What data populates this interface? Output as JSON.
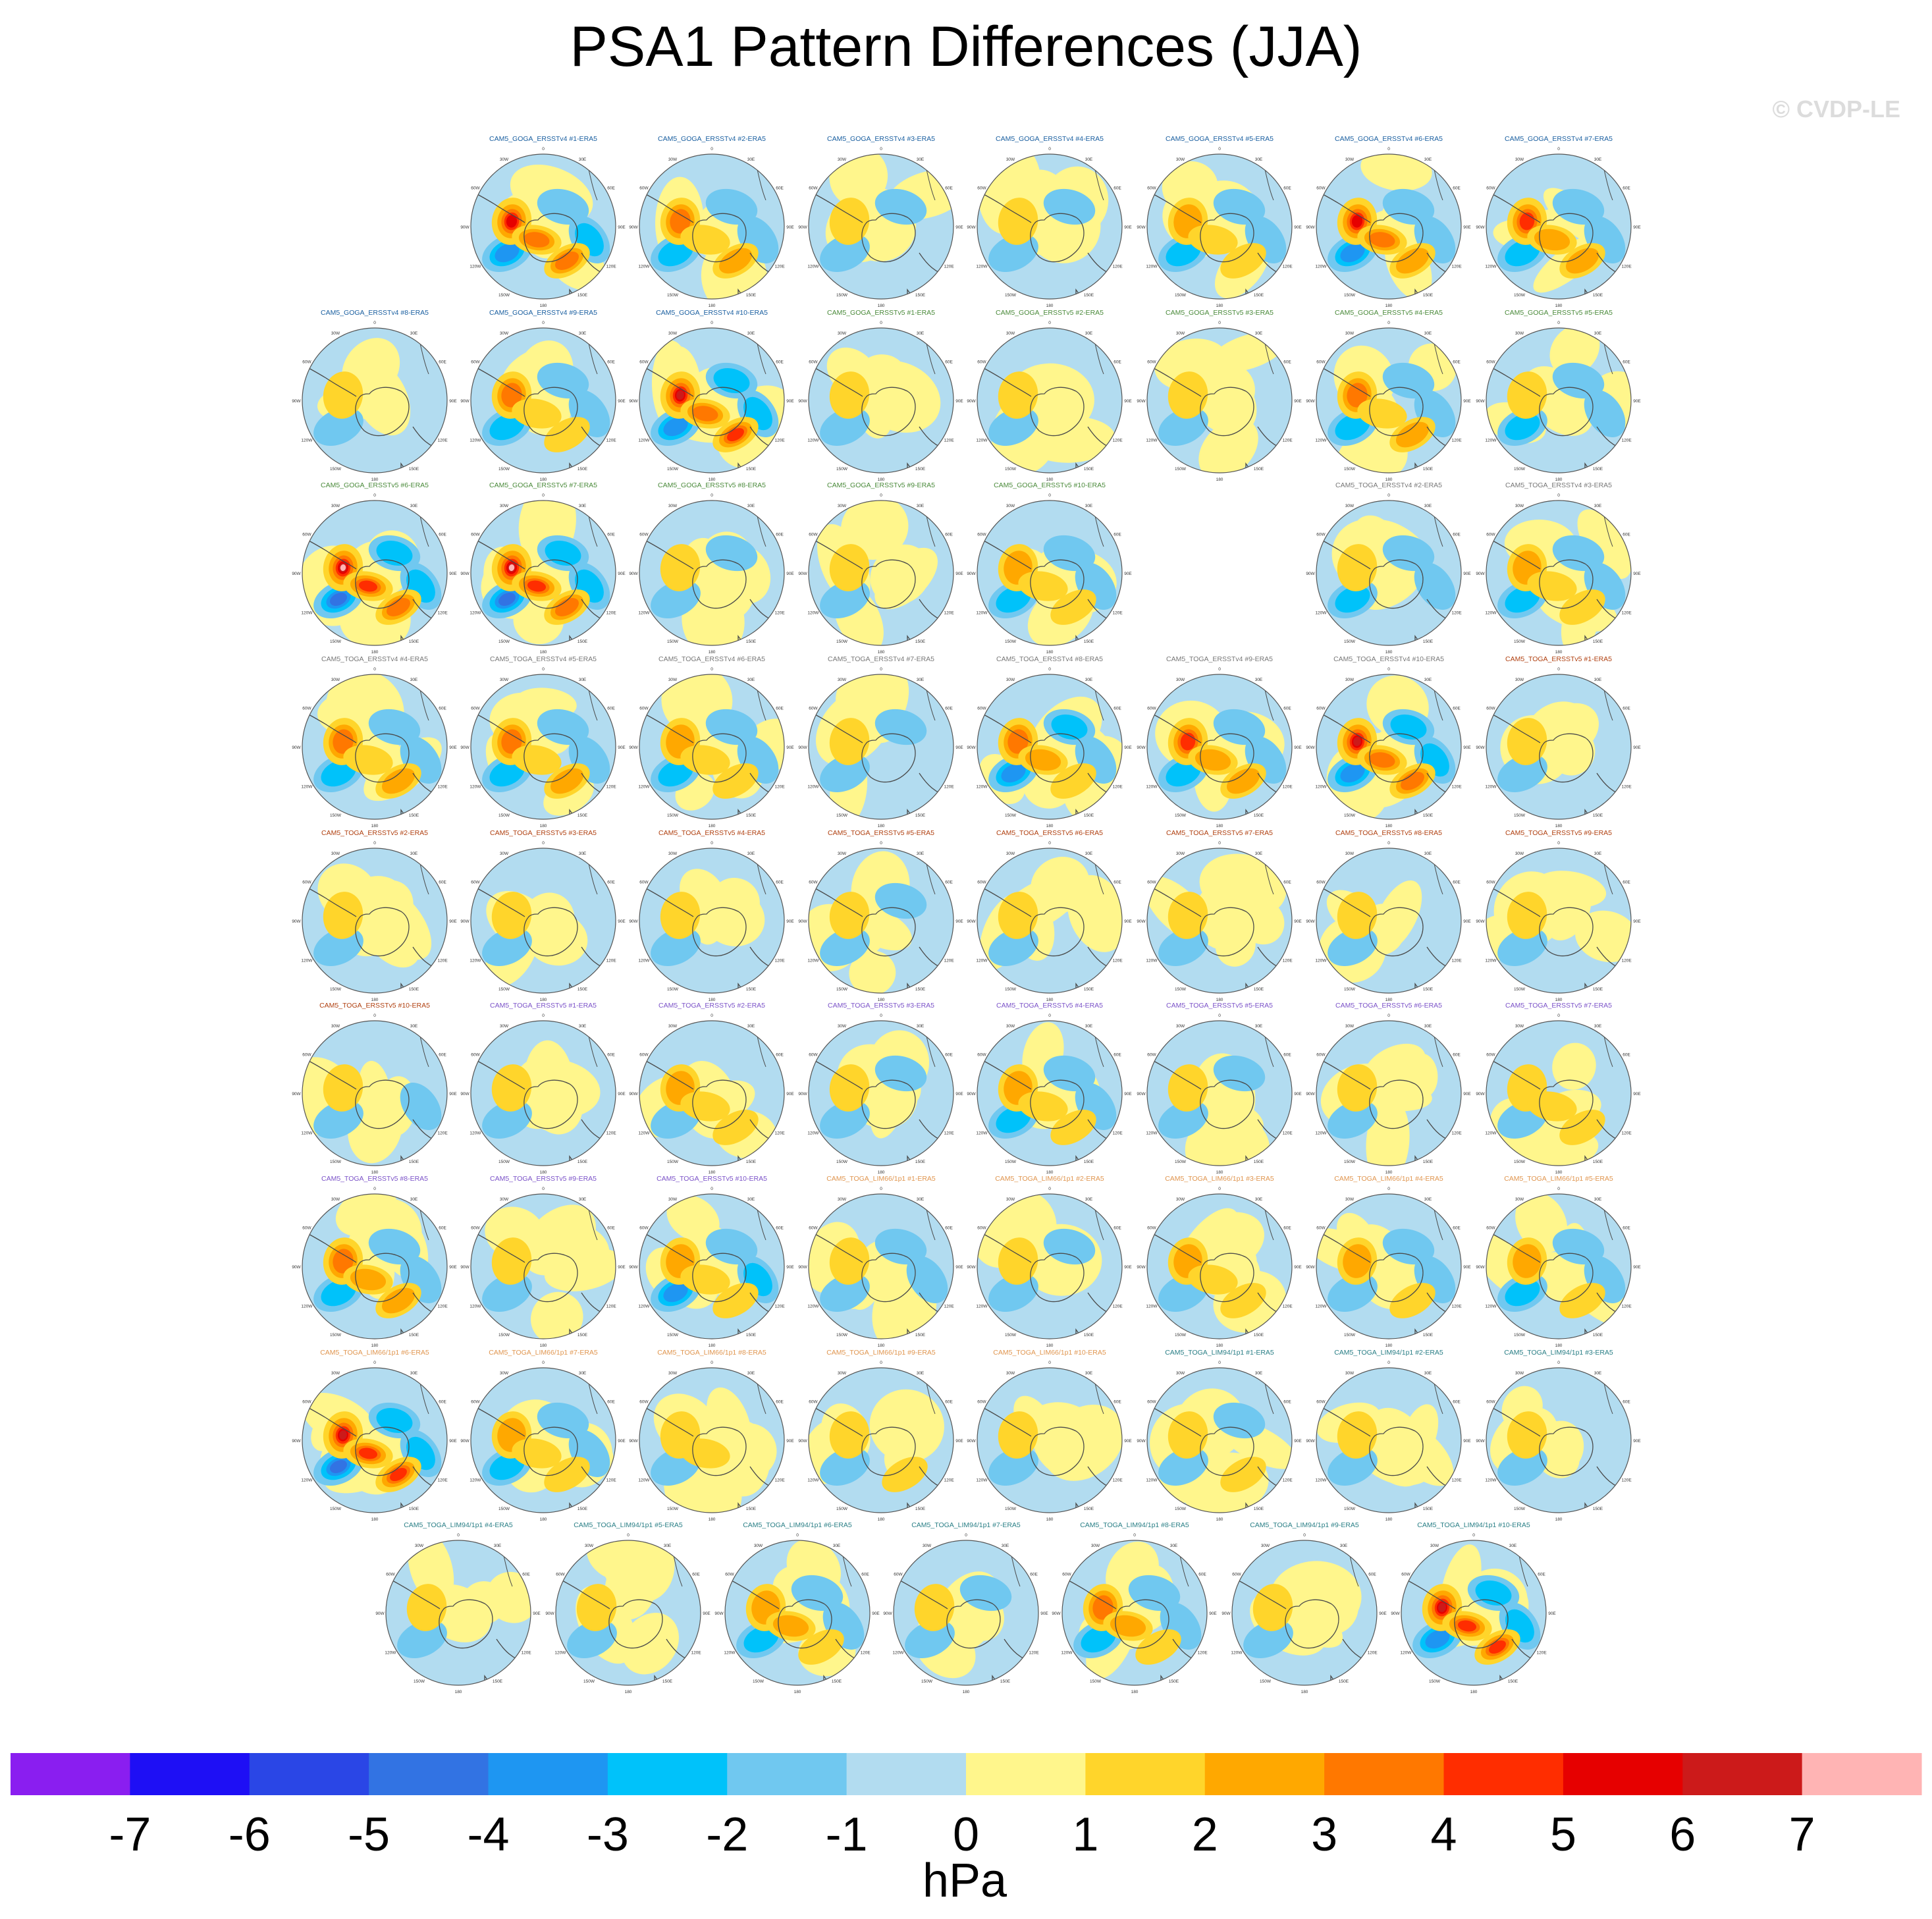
{
  "title": "PSA1 Pattern Differences (JJA)",
  "watermark": "© CVDP-LE",
  "colorbar": {
    "unit": "hPa",
    "ticks": [
      "-7",
      "-6",
      "-5",
      "-4",
      "-3",
      "-2",
      "-1",
      "0",
      "1",
      "2",
      "3",
      "4",
      "5",
      "6",
      "7"
    ],
    "colors": [
      "#8a1ef0",
      "#1e0ff5",
      "#2a46e6",
      "#3273e3",
      "#1e96f2",
      "#00c2fa",
      "#70c8f0",
      "#b2dcf0",
      "#fff68c",
      "#ffd52b",
      "#ffa800",
      "#ff7800",
      "#ff2d00",
      "#e60000",
      "#cc1a1a",
      "#ffb4b4"
    ]
  },
  "chart_data": {
    "type": "contour-map-grid",
    "title": "PSA1 Pattern Differences (JJA)",
    "projection": "South Polar Stereographic",
    "units": "hPa",
    "contour_levels": [
      -7,
      -6,
      -5,
      -4,
      -3,
      -2,
      -1,
      0,
      1,
      2,
      3,
      4,
      5,
      6,
      7
    ],
    "longitude_labels": [
      "0",
      "30E",
      "60E",
      "90E",
      "120E",
      "150E",
      "180",
      "150W",
      "120W",
      "90W",
      "60W",
      "30W"
    ],
    "panels": [
      {
        "title": "CAM5_GOGA_ERSSTv4 #1-ERA5",
        "group": "goga4",
        "max": 5.3,
        "min": -3.0
      },
      {
        "title": "CAM5_GOGA_ERSSTv4 #2-ERA5",
        "group": "goga4",
        "max": 3.2,
        "min": -2.1
      },
      {
        "title": "CAM5_GOGA_ERSSTv4 #3-ERA5",
        "group": "goga4",
        "max": 1.4,
        "min": -1.6
      },
      {
        "title": "CAM5_GOGA_ERSSTv4 #4-ERA5",
        "group": "goga4",
        "max": 1.3,
        "min": -1.5
      },
      {
        "title": "CAM5_GOGA_ERSSTv4 #5-ERA5",
        "group": "goga4",
        "max": 2.3,
        "min": -2.2
      },
      {
        "title": "CAM5_GOGA_ERSSTv4 #6-ERA5",
        "group": "goga4",
        "max": 5.0,
        "min": -3.0
      },
      {
        "title": "CAM5_GOGA_ERSSTv4 #7-ERA5",
        "group": "goga4",
        "max": 4.0,
        "min": -2.5
      },
      {
        "title": "CAM5_GOGA_ERSSTv4 #8-ERA5",
        "group": "goga4",
        "max": 1.3,
        "min": -1.2
      },
      {
        "title": "CAM5_GOGA_ERSSTv4 #9-ERA5",
        "group": "goga4",
        "max": 3.0,
        "min": -2.5
      },
      {
        "title": "CAM5_GOGA_ERSSTv4 #10-ERA5",
        "group": "goga4",
        "max": 6.5,
        "min": -3.5
      },
      {
        "title": "CAM5_GOGA_ERSSTv5 #1-ERA5",
        "group": "goga5",
        "max": 1.3,
        "min": -1.2
      },
      {
        "title": "CAM5_GOGA_ERSSTv5 #2-ERA5",
        "group": "goga5",
        "max": 1.2,
        "min": -1.2
      },
      {
        "title": "CAM5_GOGA_ERSSTv5 #3-ERA5",
        "group": "goga5",
        "max": 1.1,
        "min": -1.1
      },
      {
        "title": "CAM5_GOGA_ERSSTv5 #4-ERA5",
        "group": "goga5",
        "max": 3.3,
        "min": -2.2
      },
      {
        "title": "CAM5_GOGA_ERSSTv5 #5-ERA5",
        "group": "goga5",
        "max": 1.2,
        "min": -2.0
      },
      {
        "title": "CAM5_GOGA_ERSSTv5 #6-ERA5",
        "group": "goga5",
        "max": 7.0,
        "min": -4.0
      },
      {
        "title": "CAM5_GOGA_ERSSTv5 #7-ERA5",
        "group": "goga5",
        "max": 7.0,
        "min": -4.0
      },
      {
        "title": "CAM5_GOGA_ERSSTv5 #8-ERA5",
        "group": "goga5",
        "max": 1.2,
        "min": -1.3
      },
      {
        "title": "CAM5_GOGA_ERSSTv5 #9-ERA5",
        "group": "goga5",
        "max": 1.3,
        "min": -1.2
      },
      {
        "title": "CAM5_GOGA_ERSSTv5 #10-ERA5",
        "group": "goga5",
        "max": 2.2,
        "min": -2.3
      },
      {
        "title": "CAM5_TOGA_ERSSTv4 #2-ERA5",
        "group": "toga4",
        "max": 1.5,
        "min": -2.2
      },
      {
        "title": "CAM5_TOGA_ERSSTv4 #3-ERA5",
        "group": "toga4",
        "max": 2.2,
        "min": -2.4
      },
      {
        "title": "CAM5_TOGA_ERSSTv4 #4-ERA5",
        "group": "toga4",
        "max": 3.0,
        "min": -2.2
      },
      {
        "title": "CAM5_TOGA_ERSSTv4 #5-ERA5",
        "group": "toga4",
        "max": 3.5,
        "min": -2.5
      },
      {
        "title": "CAM5_TOGA_ERSSTv4 #6-ERA5",
        "group": "toga4",
        "max": 2.6,
        "min": -2.2
      },
      {
        "title": "CAM5_TOGA_ERSSTv4 #7-ERA5",
        "group": "toga4",
        "max": 1.2,
        "min": -1.5
      },
      {
        "title": "CAM5_TOGA_ERSSTv4 #8-ERA5",
        "group": "toga4",
        "max": 3.3,
        "min": -3.0
      },
      {
        "title": "CAM5_TOGA_ERSSTv4 #9-ERA5",
        "group": "toga4",
        "max": 4.0,
        "min": -2.4
      },
      {
        "title": "CAM5_TOGA_ERSSTv4 #10-ERA5",
        "group": "toga4",
        "max": 6.0,
        "min": -3.5
      },
      {
        "title": "CAM5_TOGA_ERSSTv5 #1-ERA5",
        "group": "toga5a",
        "max": 1.2,
        "min": -1.2
      },
      {
        "title": "CAM5_TOGA_ERSSTv5 #2-ERA5",
        "group": "toga5a",
        "max": 1.3,
        "min": -1.3
      },
      {
        "title": "CAM5_TOGA_ERSSTv5 #3-ERA5",
        "group": "toga5a",
        "max": 1.3,
        "min": -1.3
      },
      {
        "title": "CAM5_TOGA_ERSSTv5 #4-ERA5",
        "group": "toga5a",
        "max": 1.3,
        "min": -1.3
      },
      {
        "title": "CAM5_TOGA_ERSSTv5 #5-ERA5",
        "group": "toga5a",
        "max": 1.3,
        "min": -1.3
      },
      {
        "title": "CAM5_TOGA_ERSSTv5 #6-ERA5",
        "group": "toga5a",
        "max": 1.3,
        "min": -1.3
      },
      {
        "title": "CAM5_TOGA_ERSSTv5 #7-ERA5",
        "group": "toga5a",
        "max": 1.3,
        "min": -1.3
      },
      {
        "title": "CAM5_TOGA_ERSSTv5 #8-ERA5",
        "group": "toga5a",
        "max": 1.3,
        "min": -1.3
      },
      {
        "title": "CAM5_TOGA_ERSSTv5 #9-ERA5",
        "group": "toga5a",
        "max": 1.3,
        "min": -1.3
      },
      {
        "title": "CAM5_TOGA_ERSSTv5 #10-ERA5",
        "group": "toga5a",
        "max": 1.3,
        "min": -1.3
      },
      {
        "title": "CAM5_TOGA_ERSSTv5 #1-ERA5",
        "group": "toga5b",
        "max": 1.2,
        "min": -1.2
      },
      {
        "title": "CAM5_TOGA_ERSSTv5 #2-ERA5",
        "group": "toga5b",
        "max": 2.0,
        "min": -1.4
      },
      {
        "title": "CAM5_TOGA_ERSSTv5 #3-ERA5",
        "group": "toga5b",
        "max": 1.3,
        "min": -1.8
      },
      {
        "title": "CAM5_TOGA_ERSSTv5 #4-ERA5",
        "group": "toga5b",
        "max": 2.2,
        "min": -2.4
      },
      {
        "title": "CAM5_TOGA_ERSSTv5 #5-ERA5",
        "group": "toga5b",
        "max": 1.6,
        "min": -1.8
      },
      {
        "title": "CAM5_TOGA_ERSSTv5 #6-ERA5",
        "group": "toga5b",
        "max": 1.3,
        "min": -1.3
      },
      {
        "title": "CAM5_TOGA_ERSSTv5 #7-ERA5",
        "group": "toga5b",
        "max": 1.6,
        "min": -1.3
      },
      {
        "title": "CAM5_TOGA_ERSSTv5 #8-ERA5",
        "group": "toga5b",
        "max": 3.5,
        "min": -2.4
      },
      {
        "title": "CAM5_TOGA_ERSSTv5 #9-ERA5",
        "group": "toga5b",
        "max": 1.3,
        "min": -1.5
      },
      {
        "title": "CAM5_TOGA_ERSSTv5 #10-ERA5",
        "group": "toga5b",
        "max": 2.4,
        "min": -3.2
      },
      {
        "title": "CAM5_TOGA_LIM66/1p1 #1-ERA5",
        "group": "lim66",
        "max": 1.6,
        "min": -1.6
      },
      {
        "title": "CAM5_TOGA_LIM66/1p1 #2-ERA5",
        "group": "lim66",
        "max": 1.8,
        "min": -1.5
      },
      {
        "title": "CAM5_TOGA_LIM66/1p1 #3-ERA5",
        "group": "lim66",
        "max": 2.4,
        "min": -1.3
      },
      {
        "title": "CAM5_TOGA_LIM66/1p1 #4-ERA5",
        "group": "lim66",
        "max": 2.0,
        "min": -1.5
      },
      {
        "title": "CAM5_TOGA_LIM66/1p1 #5-ERA5",
        "group": "lim66",
        "max": 2.0,
        "min": -2.3
      },
      {
        "title": "CAM5_TOGA_LIM66/1p1 #6-ERA5",
        "group": "lim66",
        "max": 6.8,
        "min": -4.0
      },
      {
        "title": "CAM5_TOGA_LIM66/1p1 #7-ERA5",
        "group": "lim66",
        "max": 2.5,
        "min": -2.4
      },
      {
        "title": "CAM5_TOGA_LIM66/1p1 #8-ERA5",
        "group": "lim66",
        "max": 1.5,
        "min": -1.3
      },
      {
        "title": "CAM5_TOGA_LIM66/1p1 #9-ERA5",
        "group": "lim66",
        "max": 1.5,
        "min": -1.2
      },
      {
        "title": "CAM5_TOGA_LIM66/1p1 #10-ERA5",
        "group": "lim66",
        "max": 1.2,
        "min": -1.2
      },
      {
        "title": "CAM5_TOGA_LIM94/1p1 #1-ERA5",
        "group": "lim94",
        "max": 1.4,
        "min": -1.4
      },
      {
        "title": "CAM5_TOGA_LIM94/1p1 #2-ERA5",
        "group": "lim94",
        "max": 1.4,
        "min": -1.2
      },
      {
        "title": "CAM5_TOGA_LIM94/1p1 #3-ERA5",
        "group": "lim94",
        "max": 1.5,
        "min": -1.4
      },
      {
        "title": "CAM5_TOGA_LIM94/1p1 #4-ERA5",
        "group": "lim94",
        "max": 1.2,
        "min": -1.5
      },
      {
        "title": "CAM5_TOGA_LIM94/1p1 #5-ERA5",
        "group": "lim94",
        "max": 1.6,
        "min": -1.4
      },
      {
        "title": "CAM5_TOGA_LIM94/1p1 #6-ERA5",
        "group": "lim94",
        "max": 2.8,
        "min": -2.3
      },
      {
        "title": "CAM5_TOGA_LIM94/1p1 #7-ERA5",
        "group": "lim94",
        "max": 1.4,
        "min": -1.5
      },
      {
        "title": "CAM5_TOGA_LIM94/1p1 #8-ERA5",
        "group": "lim94",
        "max": 3.0,
        "min": -2.2
      },
      {
        "title": "CAM5_TOGA_LIM94/1p1 #9-ERA5",
        "group": "lim94",
        "max": 1.3,
        "min": -1.2
      },
      {
        "title": "CAM5_TOGA_LIM94/1p1 #10-ERA5",
        "group": "lim94",
        "max": 6.8,
        "min": -3.5
      }
    ],
    "group_colors": {
      "goga4": "#1a5fa0",
      "goga5": "#4a8a3a",
      "toga4": "#777777",
      "toga5a": "#b04010",
      "toga5b": "#7b52c8",
      "lim66": "#e09650",
      "lim94": "#2a7f86"
    }
  }
}
